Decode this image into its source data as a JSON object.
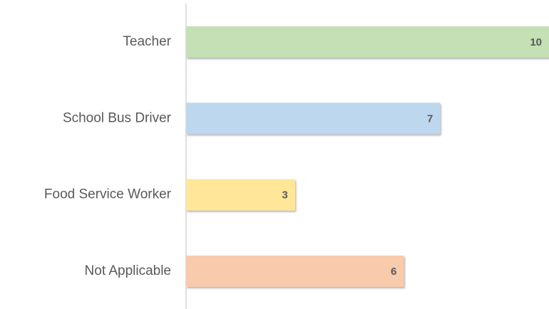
{
  "chart_data": {
    "type": "bar",
    "orientation": "horizontal",
    "categories": [
      "Teacher",
      "School Bus Driver",
      "Food Service Worker",
      "Not Applicable"
    ],
    "values": [
      10,
      7,
      3,
      6
    ],
    "colors": [
      "#c5e0b4",
      "#bdd7ee",
      "#ffe699",
      "#f8cbad"
    ],
    "xlim": [
      0,
      10
    ]
  }
}
